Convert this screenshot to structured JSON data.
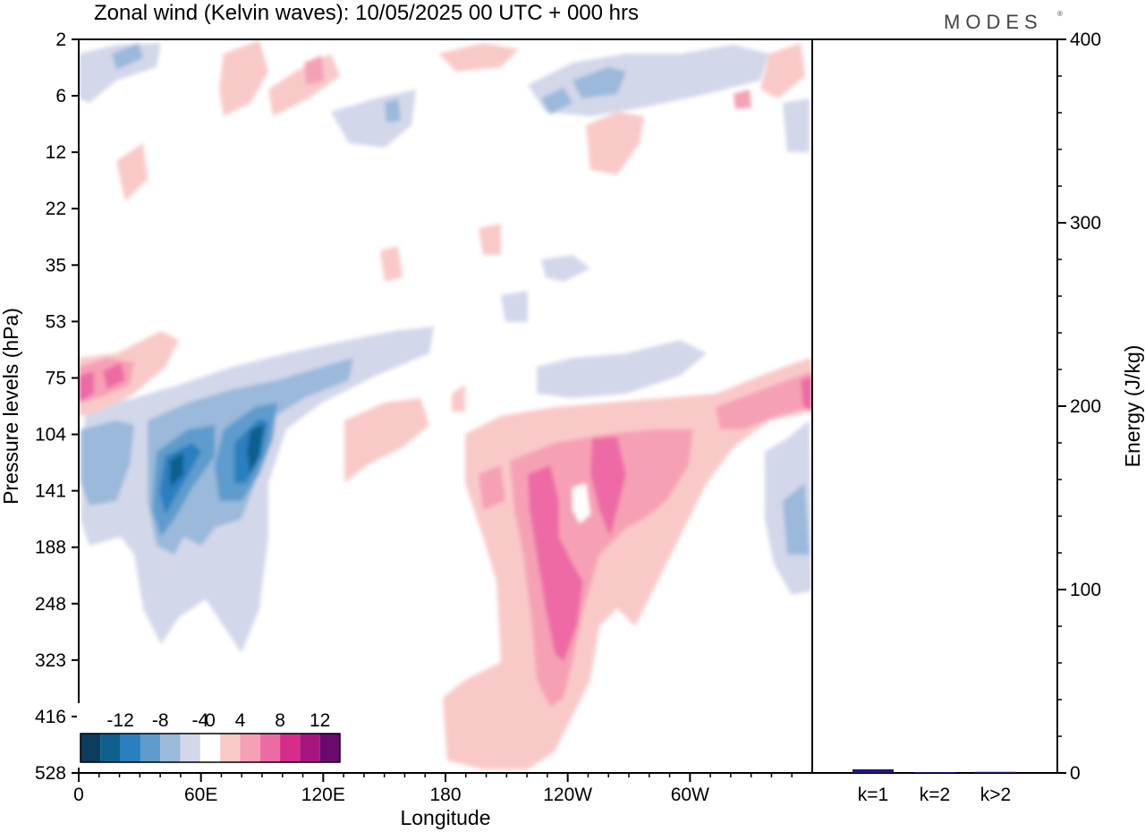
{
  "title": "Zonal wind (Kelvin waves):  10/05/2025  00 UTC  + 000 hrs",
  "logo": "MODES",
  "chart_data": [
    {
      "type": "heatmap",
      "xlabel": "Longitude",
      "ylabel": "Pressure levels (hPa)",
      "x_tick_labels": [
        "0",
        "60E",
        "120E",
        "180",
        "120W",
        "60W"
      ],
      "x_tick_degrees": [
        0,
        60,
        120,
        180,
        240,
        300
      ],
      "xlim": [
        0,
        360
      ],
      "y_tick_labels": [
        "2",
        "6",
        "12",
        "22",
        "35",
        "53",
        "75",
        "104",
        "141",
        "188",
        "248",
        "323",
        "416",
        "528"
      ],
      "colorbar": {
        "labels": [
          "-12",
          "-8",
          "-4",
          "0",
          "4",
          "8",
          "12"
        ],
        "levels": [
          -14,
          -12,
          -10,
          -8,
          -6,
          -4,
          -2,
          2,
          4,
          6,
          8,
          10,
          12,
          14
        ],
        "colors": [
          "#0b3d5c",
          "#0f5f8f",
          "#2a7fbf",
          "#5d9ccc",
          "#9ab9db",
          "#d3d7ea",
          "#ffffff",
          "#f9c9c8",
          "#f6a0b5",
          "#ed6ba4",
          "#d62d8d",
          "#a8157e",
          "#6b0a6e"
        ]
      },
      "features": [
        {
          "sign": "negative",
          "lon_range": [
            30,
            110
          ],
          "levels": "104-248",
          "peak": -12
        },
        {
          "sign": "positive",
          "lon_range": [
            200,
            250
          ],
          "levels": "104-323",
          "peak": 8
        },
        {
          "sign": "positive",
          "lon_range": [
            0,
            40
          ],
          "levels": "53-104",
          "peak": 8
        },
        {
          "sign": "positive",
          "lon_range": [
            310,
            360
          ],
          "levels": "75-104",
          "peak": 8
        }
      ]
    },
    {
      "type": "bar",
      "categories": [
        "k=1",
        "k=2",
        "k>2"
      ],
      "values": [
        2,
        0.4,
        0.6
      ],
      "ylabel": "Energy (J/kg)",
      "ylim": [
        0,
        400
      ],
      "y_tick_labels": [
        "0",
        "100",
        "200",
        "300",
        "400"
      ],
      "bar_color": "#1a1a80"
    }
  ]
}
